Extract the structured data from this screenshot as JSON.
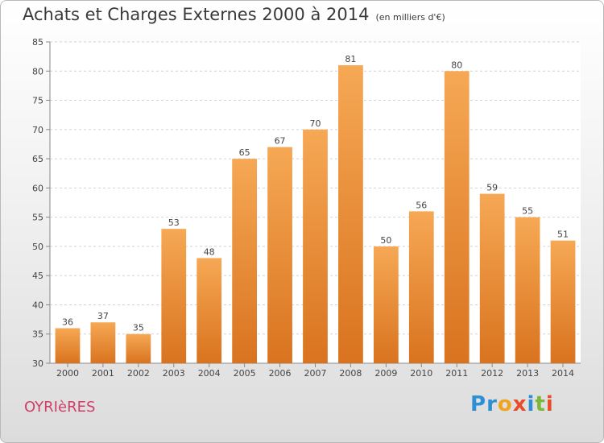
{
  "title": "Achats et Charges Externes 2000 à 2014",
  "unit": "(en milliers d'€)",
  "commune": "OYRIèRES",
  "logo": {
    "letters": [
      "P",
      "r",
      "o",
      "x",
      "i",
      "t",
      "i"
    ],
    "colors": [
      "#2d8fd5",
      "#2d8fd5",
      "#f0a51e",
      "#e84d2a",
      "#2d8fd5",
      "#7ab73a",
      "#e84d2a"
    ]
  },
  "colors": {
    "bar_light": "#f6a854",
    "bar_dark": "#d9731f",
    "title": "#3a3a3a",
    "commune": "#d03e6a"
  },
  "chart_data": {
    "type": "bar",
    "title": "Achats et Charges Externes 2000 à 2014",
    "subtitle": "(en milliers d'€)",
    "categories": [
      "2000",
      "2001",
      "2002",
      "2003",
      "2004",
      "2005",
      "2006",
      "2007",
      "2008",
      "2009",
      "2010",
      "2011",
      "2012",
      "2013",
      "2014"
    ],
    "values": [
      36,
      37,
      35,
      53,
      48,
      65,
      67,
      70,
      81,
      50,
      56,
      80,
      59,
      55,
      51
    ],
    "ylim": [
      30,
      85
    ],
    "yticks": [
      30,
      35,
      40,
      45,
      50,
      55,
      60,
      65,
      70,
      75,
      80,
      85
    ],
    "grid": true,
    "data_labels": true
  }
}
